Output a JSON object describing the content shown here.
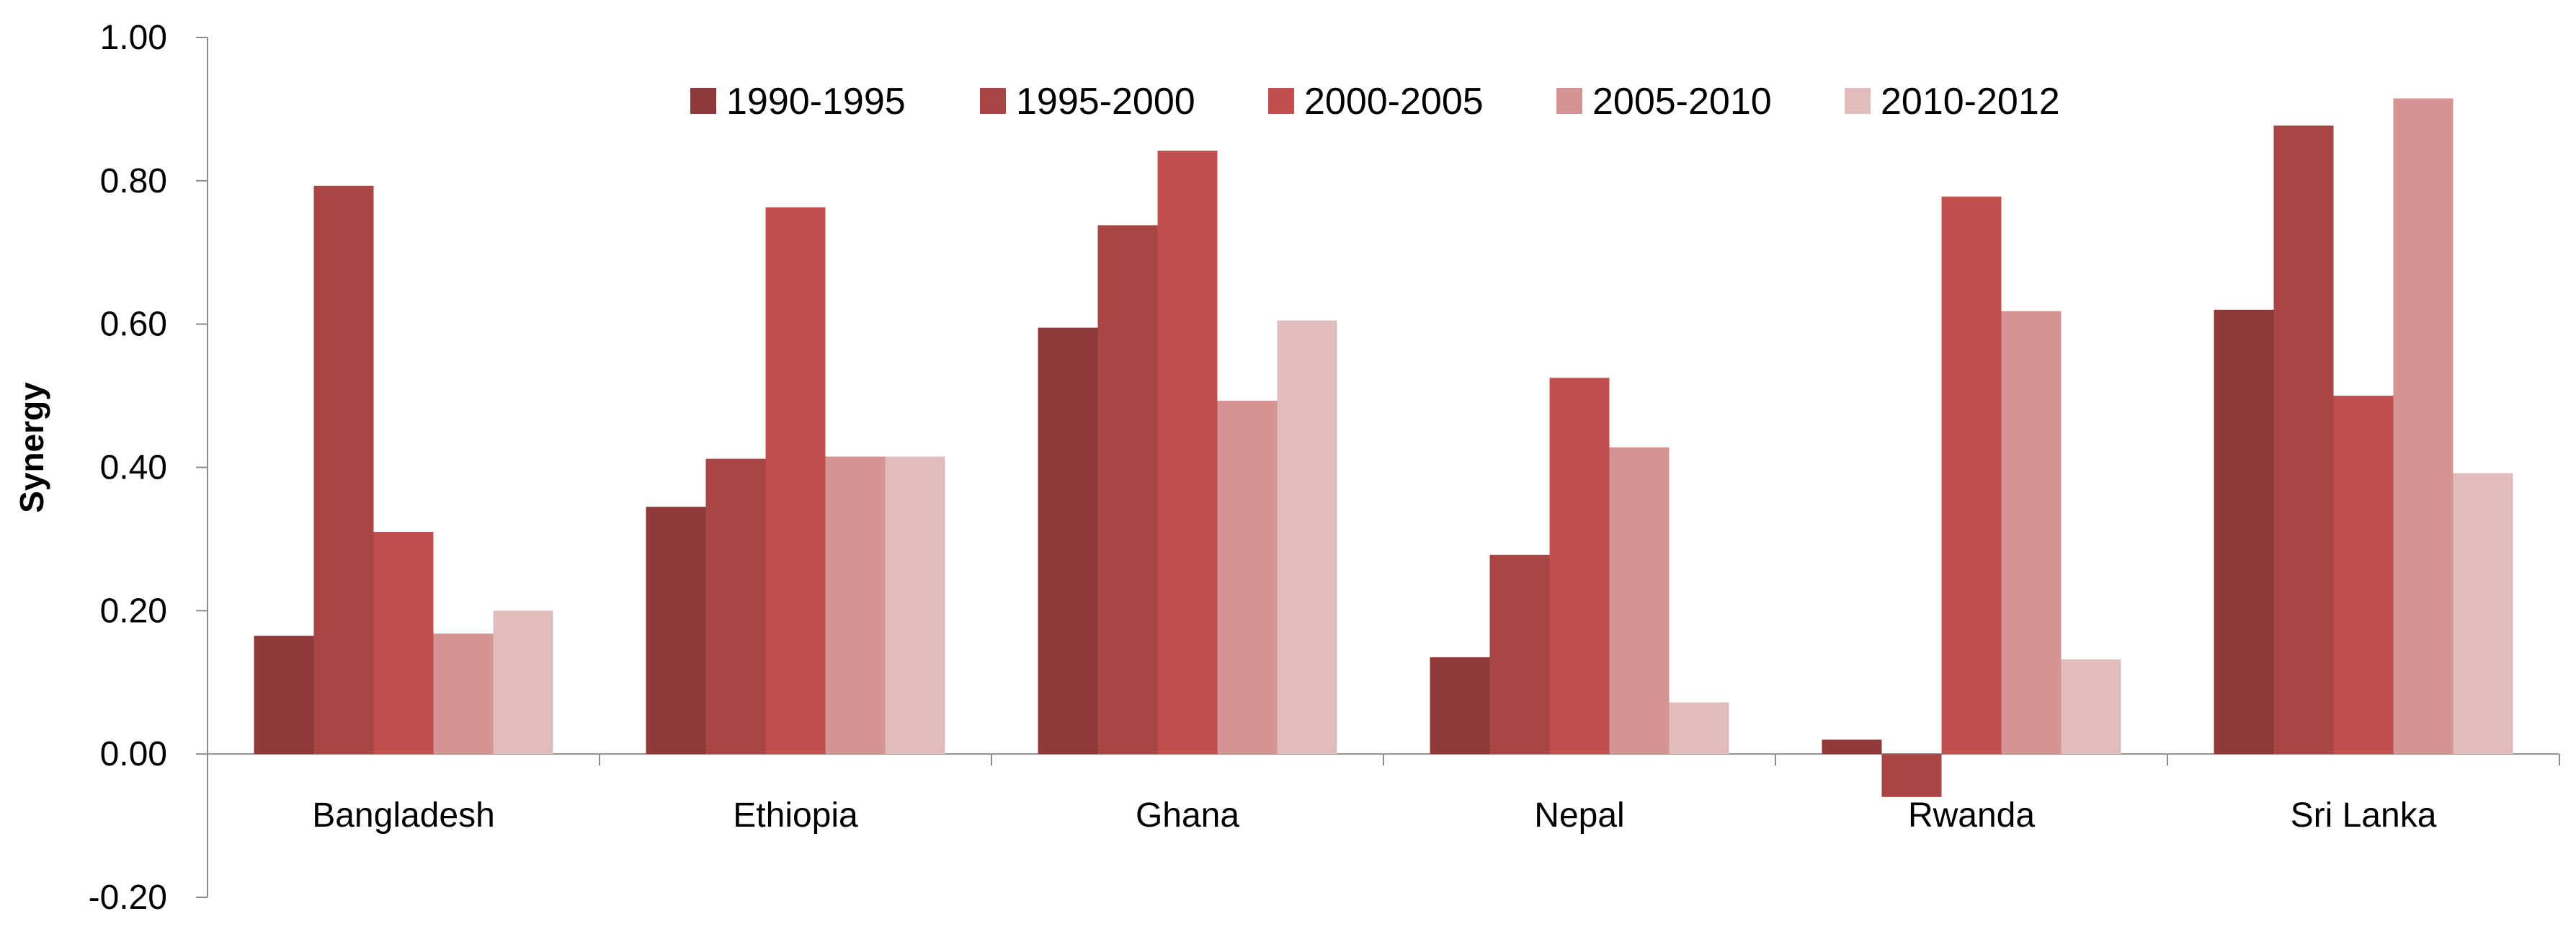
{
  "chart_data": {
    "type": "bar",
    "title": "",
    "xlabel": "",
    "ylabel": "Synergy",
    "ylim": [
      -0.2,
      1.0
    ],
    "yticks": [
      -0.2,
      0.0,
      0.2,
      0.4,
      0.6,
      0.8,
      1.0
    ],
    "ytick_labels": [
      "-0.20",
      "0.00",
      "0.20",
      "0.40",
      "0.60",
      "0.80",
      "1.00"
    ],
    "grid": false,
    "legend_position": "top",
    "categories": [
      "Bangladesh",
      "Ethiopia",
      "Ghana",
      "Nepal",
      "Rwanda",
      "Sri Lanka"
    ],
    "series": [
      {
        "name": "1990-1995",
        "color": "#8f3a3a",
        "values": [
          0.165,
          0.345,
          0.595,
          0.135,
          0.02,
          0.62
        ]
      },
      {
        "name": "1995-2000",
        "color": "#a84646",
        "values": [
          0.793,
          0.412,
          0.738,
          0.278,
          -0.06,
          0.877
        ]
      },
      {
        "name": "2000-2005",
        "color": "#c0504d",
        "values": [
          0.31,
          0.763,
          0.842,
          0.525,
          0.778,
          0.5
        ]
      },
      {
        "name": "2005-2010",
        "color": "#d39493",
        "values": [
          0.168,
          0.415,
          0.493,
          0.428,
          0.618,
          0.915
        ]
      },
      {
        "name": "2010-2012",
        "color": "#e2bcbc",
        "values": [
          0.2,
          0.415,
          0.605,
          0.072,
          0.132,
          0.392
        ]
      }
    ]
  }
}
